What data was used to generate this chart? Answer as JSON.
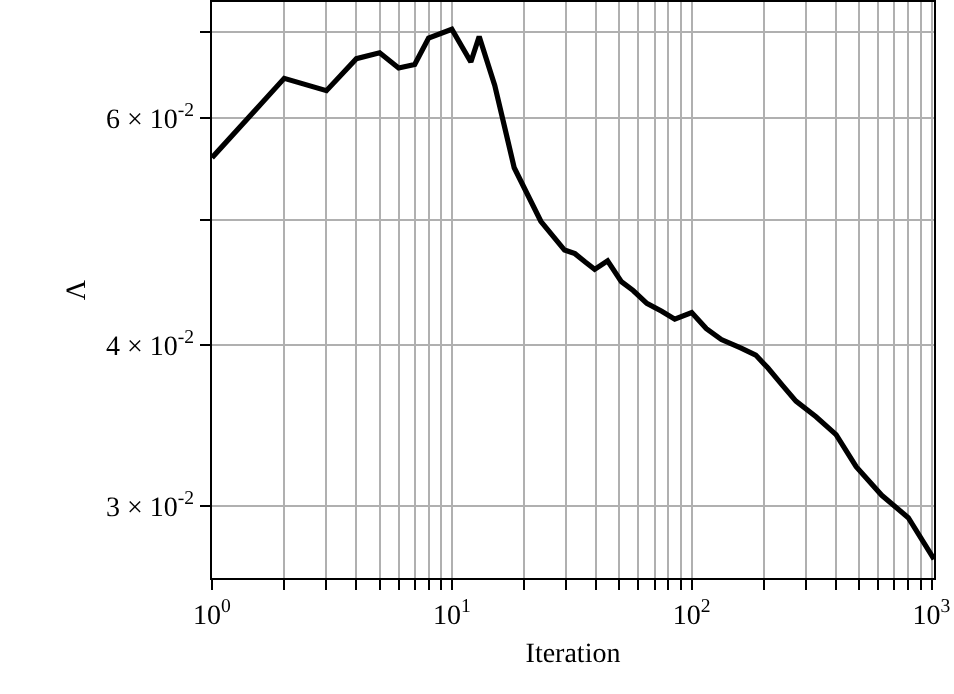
{
  "chart_data": {
    "type": "line",
    "xlabel": "Iteration",
    "ylabel": "Λ",
    "log": "xy",
    "grid": true,
    "line_style": "solid",
    "marker": "none",
    "series": [
      {
        "color": "#000000",
        "x": [
          1,
          2,
          3,
          4,
          5,
          6,
          7,
          8,
          10,
          12,
          13,
          15.1,
          18.2,
          23.5,
          29.5,
          32.6,
          36,
          39.4,
          44.6,
          50.9,
          57,
          65,
          75,
          85,
          100,
          115,
          133,
          160,
          185,
          208,
          240,
          272,
          330,
          400,
          485,
          620,
          800,
          1000,
          1024
        ],
        "values": [
          0.0559,
          0.0644,
          0.063,
          0.0667,
          0.0674,
          0.0656,
          0.066,
          0.0692,
          0.0703,
          0.0663,
          0.0694,
          0.0636,
          0.0549,
          0.0499,
          0.0474,
          0.0471,
          0.0464,
          0.0458,
          0.0465,
          0.0448,
          0.0441,
          0.0431,
          0.0425,
          0.0419,
          0.0424,
          0.0412,
          0.0404,
          0.0398,
          0.0393,
          0.0384,
          0.0372,
          0.0362,
          0.0352,
          0.0341,
          0.0322,
          0.0306,
          0.0294,
          0.0275,
          0.0273
        ]
      }
    ],
    "xlim": [
      1,
      1024
    ],
    "ylim": [
      0.0264,
      0.0738
    ],
    "xticks": [
      {
        "value": 1,
        "label": "10$^{0}$"
      },
      {
        "value": 2,
        "label": null
      },
      {
        "value": 3,
        "label": null
      },
      {
        "value": 4,
        "label": null
      },
      {
        "value": 5,
        "label": null
      },
      {
        "value": 6,
        "label": null
      },
      {
        "value": 7,
        "label": null
      },
      {
        "value": 8,
        "label": null
      },
      {
        "value": 9,
        "label": null
      },
      {
        "value": 10,
        "label": "10$^{1}$"
      },
      {
        "value": 20,
        "label": null
      },
      {
        "value": 30,
        "label": null
      },
      {
        "value": 40,
        "label": null
      },
      {
        "value": 50,
        "label": null
      },
      {
        "value": 60,
        "label": null
      },
      {
        "value": 70,
        "label": null
      },
      {
        "value": 80,
        "label": null
      },
      {
        "value": 90,
        "label": null
      },
      {
        "value": 100,
        "label": "10$^{2}$"
      },
      {
        "value": 200,
        "label": null
      },
      {
        "value": 300,
        "label": null
      },
      {
        "value": 400,
        "label": null
      },
      {
        "value": 500,
        "label": null
      },
      {
        "value": 600,
        "label": null
      },
      {
        "value": 700,
        "label": null
      },
      {
        "value": 800,
        "label": null
      },
      {
        "value": 900,
        "label": null
      },
      {
        "value": 1000,
        "label": "10$^{3}$"
      }
    ],
    "yticks": [
      {
        "value": 0.03,
        "label": "3 × 10$^{-2}$"
      },
      {
        "value": 0.04,
        "label": "4 × 10$^{-2}$"
      },
      {
        "value": 0.05,
        "label": null
      },
      {
        "value": 0.06,
        "label": "6 × 10$^{-2}$"
      },
      {
        "value": 0.07,
        "label": null
      }
    ]
  }
}
